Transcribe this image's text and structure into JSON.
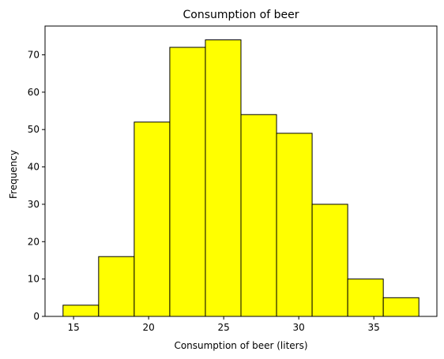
{
  "chart_data": {
    "type": "bar",
    "title": "Consumption of beer",
    "xlabel": "Consumption of beer (liters)",
    "ylabel": "Frequency",
    "bins": [
      {
        "x0": 14.3,
        "x1": 16.67,
        "count": 3
      },
      {
        "x0": 16.67,
        "x1": 19.04,
        "count": 16
      },
      {
        "x0": 19.04,
        "x1": 21.41,
        "count": 52
      },
      {
        "x0": 21.41,
        "x1": 23.78,
        "count": 72
      },
      {
        "x0": 23.78,
        "x1": 26.15,
        "count": 74
      },
      {
        "x0": 26.15,
        "x1": 28.52,
        "count": 54
      },
      {
        "x0": 28.52,
        "x1": 30.89,
        "count": 49
      },
      {
        "x0": 30.89,
        "x1": 33.26,
        "count": 30
      },
      {
        "x0": 33.26,
        "x1": 35.63,
        "count": 10
      },
      {
        "x0": 35.63,
        "x1": 38.0,
        "count": 5
      }
    ],
    "xlim": [
      13.1,
      39.2
    ],
    "ylim": [
      0,
      77.7
    ],
    "xticks": [
      15,
      20,
      25,
      30,
      35
    ],
    "yticks": [
      0,
      10,
      20,
      30,
      40,
      50,
      60,
      70
    ],
    "bar_color": "#ffff00",
    "edge_color": "#000000",
    "grid": false,
    "legend": false
  }
}
